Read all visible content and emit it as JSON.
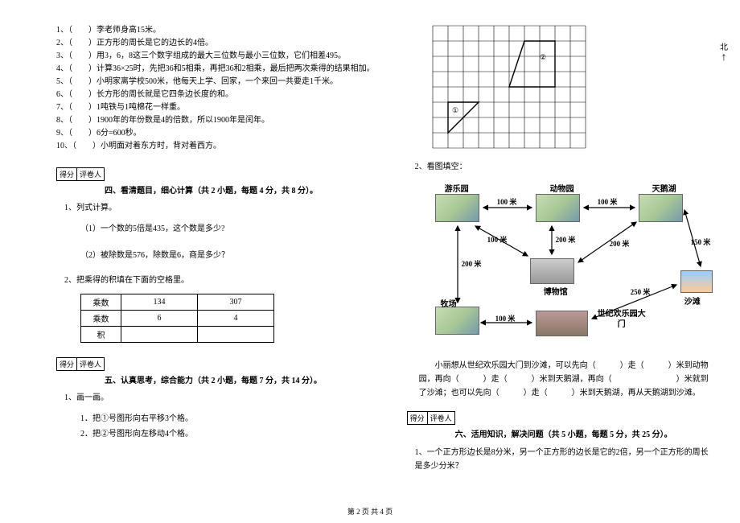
{
  "left": {
    "questions": [
      "1、（　　）李老师身高15米。",
      "2、（　　）正方形的周长是它的边长的4倍。",
      "3、（　　）用3，6，8这三个数字组成的最大三位数与最小三位数，它们相差495。",
      "4、（　　）计算36×25时，先把36和5相乘，再把36和2相乘，最后把两次乘得的结果相加。",
      "5、（　　）小明家离学校500米，他每天上学、回家，一个来回一共要走1千米。",
      "6、（　　）长方形的周长就是它四条边长度的和。",
      "7、（　　）1吨铁与1吨棉花一样重。",
      "8、（　　）1900年的年份数是4的倍数，所以1900年是闰年。",
      "9、（　　）6分=600秒。",
      "10、（　　）小明面对着东方时，背对着西方。"
    ],
    "score_labels": [
      "得分",
      "评卷人"
    ],
    "section4": "四、看清题目，细心计算（共 2 小题，每题 4 分，共 8 分）。",
    "q4_1": "1、列式计算。",
    "q4_1_1": "（1）一个数的5倍是435，这个数是多少?",
    "q4_1_2": "（2）被除数是576，除数是6，商是多少？",
    "q4_2": "2、把乘得的积填在下面的空格里。",
    "table": {
      "rows": [
        [
          "乘数",
          "134",
          "307"
        ],
        [
          "乘数",
          "6",
          "4"
        ],
        [
          "积",
          "",
          ""
        ]
      ]
    },
    "section5": "五、认真思考，综合能力（共 2 小题，每题 7 分，共 14 分）。",
    "q5_1": "1、画一画。",
    "q5_1_1": "1．把①号图形向右平移3个格。",
    "q5_1_2": "2．把②号图形向左移动4个格。"
  },
  "right": {
    "q2": "2、看图填空：",
    "north": "北",
    "labels": {
      "amuse": "游乐园",
      "zoo": "动物园",
      "swan": "天鹅湖",
      "farm": "牧场",
      "museum": "博物馆",
      "gate": "世纪欢乐园大　门",
      "beach": "沙滩"
    },
    "dist": {
      "d100": "100 米",
      "d150": "150 米",
      "d200": "200 米",
      "d250": "250 米"
    },
    "map_text": "　　小丽想从世纪欢乐园大门到沙滩，可以先向（　　　）走（　　　）米到动物园，再向（　　　）走（　　　）米到天鹅湖，再向（　　　　　　　　）米就到了沙滩；也可以先向（　　　）走（　　　）米到天鹅湖，再从天鹅湖到沙滩。",
    "score_labels": [
      "得分",
      "评卷人"
    ],
    "section6": "六、活用知识，解决问题（共 5 小题，每题 5 分，共 25 分）。",
    "q6_1": "1、一个正方形边长是8分米，另一个正方形的边长是它的2倍，另一个正方形的周长是多少分米？"
  },
  "footer": "第 2 页 共 4 页"
}
